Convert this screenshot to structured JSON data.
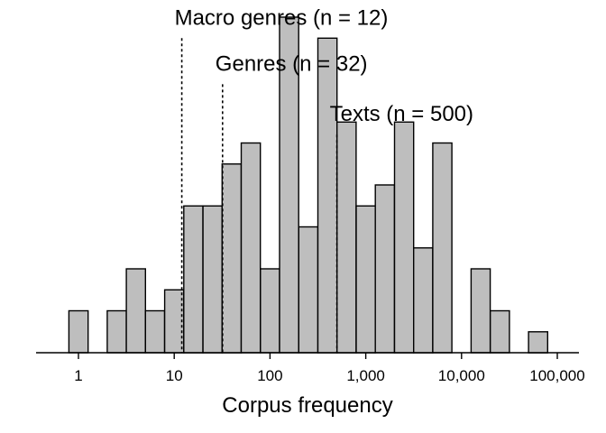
{
  "chart_data": {
    "type": "bar",
    "subtype": "histogram",
    "xlabel": "Corpus frequency",
    "ylabel": "",
    "title": "",
    "x_scale": "log10",
    "xlim": [
      0.5,
      160000
    ],
    "bin_width_log10": 0.2,
    "bins": [
      {
        "from": 0.794,
        "to": 1.259,
        "count": 1
      },
      {
        "from": 1.995,
        "to": 3.162,
        "count": 1
      },
      {
        "from": 3.162,
        "to": 5.012,
        "count": 2
      },
      {
        "from": 5.012,
        "to": 7.943,
        "count": 1
      },
      {
        "from": 7.943,
        "to": 12.59,
        "count": 1.5
      },
      {
        "from": 12.59,
        "to": 19.95,
        "count": 3.5
      },
      {
        "from": 19.95,
        "to": 31.62,
        "count": 3.5
      },
      {
        "from": 31.62,
        "to": 50.12,
        "count": 4.5
      },
      {
        "from": 50.12,
        "to": 79.43,
        "count": 5
      },
      {
        "from": 79.43,
        "to": 125.9,
        "count": 2
      },
      {
        "from": 125.9,
        "to": 199.5,
        "count": 8
      },
      {
        "from": 199.5,
        "to": 316.2,
        "count": 3
      },
      {
        "from": 316.2,
        "to": 501.2,
        "count": 7.5
      },
      {
        "from": 501.2,
        "to": 794.3,
        "count": 5.5
      },
      {
        "from": 794.3,
        "to": 1259,
        "count": 3.5
      },
      {
        "from": 1259,
        "to": 1995,
        "count": 4
      },
      {
        "from": 1995,
        "to": 3162,
        "count": 5.5
      },
      {
        "from": 3162,
        "to": 5012,
        "count": 2.5
      },
      {
        "from": 5012,
        "to": 7943,
        "count": 5
      },
      {
        "from": 12589,
        "to": 19953,
        "count": 2
      },
      {
        "from": 19953,
        "to": 31623,
        "count": 1
      },
      {
        "from": 50119,
        "to": 79433,
        "count": 0.5
      }
    ],
    "ylim": [
      0,
      8.5
    ],
    "x_ticks": [
      {
        "value": 1,
        "label": "1"
      },
      {
        "value": 10,
        "label": "10"
      },
      {
        "value": 100,
        "label": "100"
      },
      {
        "value": 1000,
        "label": "1,000"
      },
      {
        "value": 10000,
        "label": "10,000"
      },
      {
        "value": 100000,
        "label": "100,000"
      }
    ],
    "reference_lines": [
      {
        "value": 12,
        "label": "Macro genres (n = 12)",
        "top": 7.5
      },
      {
        "value": 32,
        "label": "Genres (n = 32)",
        "top": 6.4
      },
      {
        "value": 500,
        "label": "Texts (n = 500)",
        "top": 5.2
      }
    ],
    "grid": false,
    "legend": "none",
    "colors": {
      "bar_fill": "#bebebe",
      "bar_stroke": "#000000",
      "axis": "#000000",
      "ref_line": "#000000"
    }
  }
}
